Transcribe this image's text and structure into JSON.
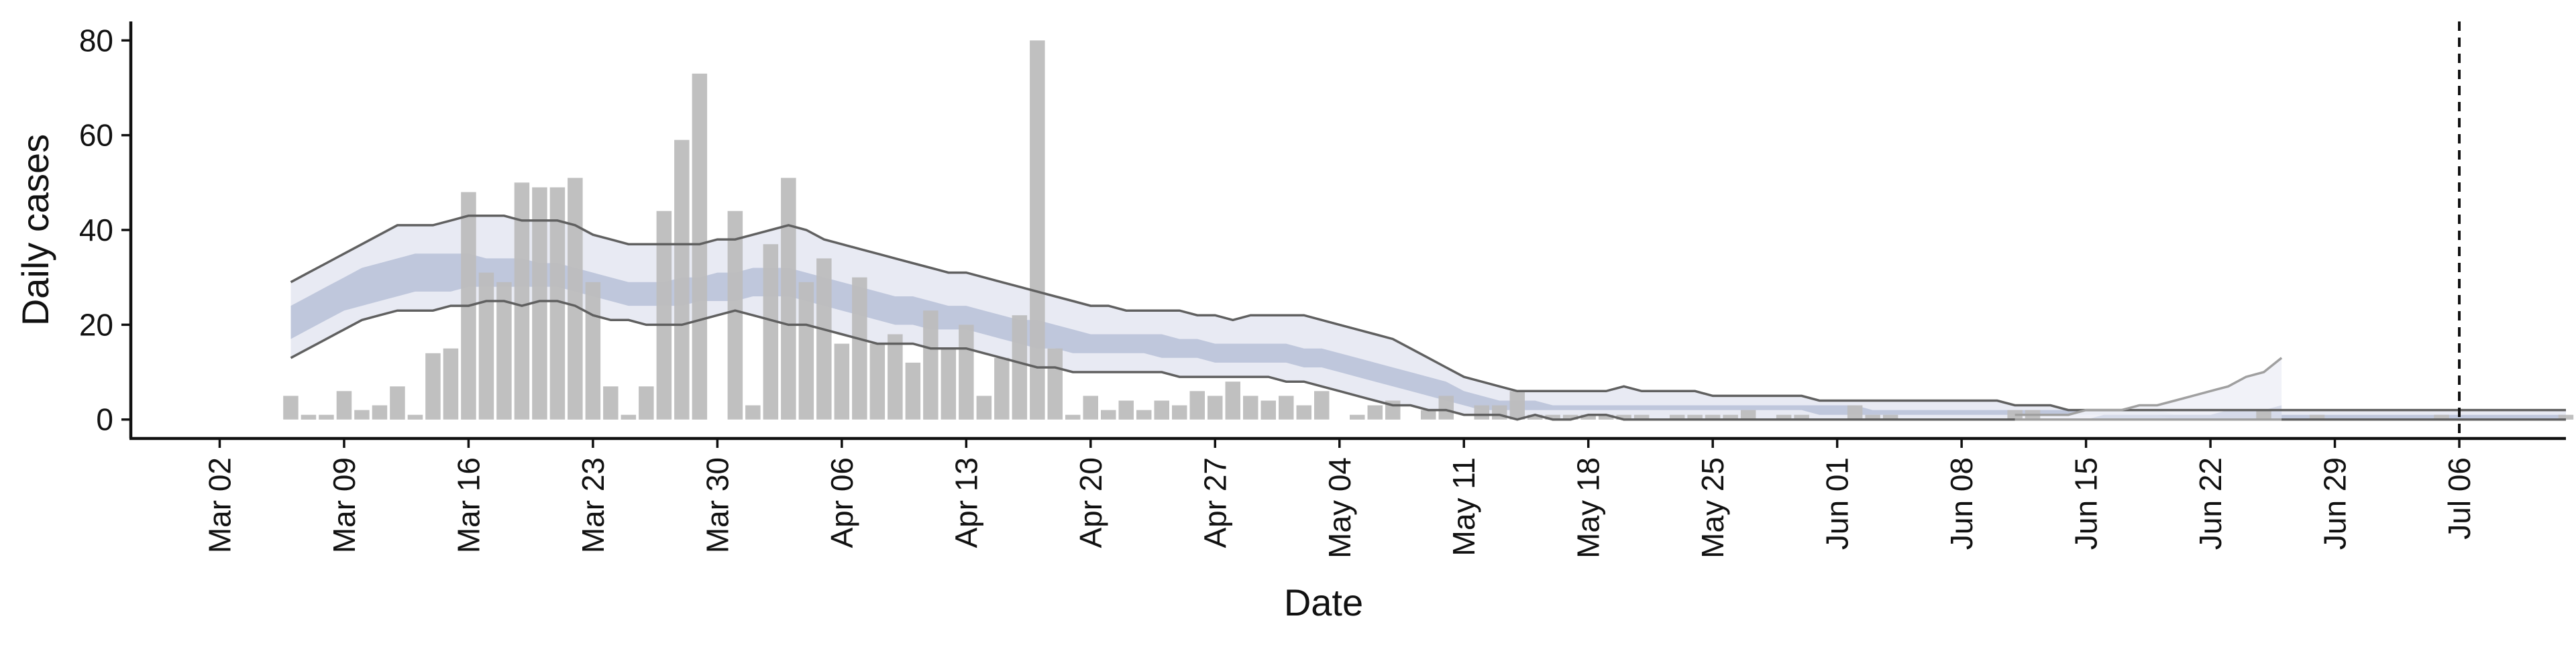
{
  "chart_data": {
    "type": "bar",
    "title": "",
    "xlabel": "Date",
    "ylabel": "Daily cases",
    "ylim": [
      -4,
      84
    ],
    "xlim": [
      "2020-02-26",
      "2020-07-12"
    ],
    "grid": false,
    "legend": "none",
    "x_ticks": [
      "2020-03-02",
      "2020-03-09",
      "2020-03-16",
      "2020-03-23",
      "2020-03-30",
      "2020-04-06",
      "2020-04-13",
      "2020-04-20",
      "2020-04-27",
      "2020-05-04",
      "2020-05-11",
      "2020-05-18",
      "2020-05-25",
      "2020-06-01",
      "2020-06-08",
      "2020-06-15",
      "2020-06-22",
      "2020-06-29",
      "2020-07-06"
    ],
    "x_tick_labels": [
      "Mar 02",
      "Mar 09",
      "Mar 16",
      "Mar 23",
      "Mar 30",
      "Apr 06",
      "Apr 13",
      "Apr 20",
      "Apr 27",
      "May 04",
      "May 11",
      "May 18",
      "May 25",
      "Jun 01",
      "Jun 08",
      "Jun 15",
      "Jun 22",
      "Jun 29",
      "Jul 06"
    ],
    "y_ticks": [
      0,
      20,
      40,
      60,
      80
    ],
    "vline_date": "2020-07-06",
    "colors": {
      "bars": "#bdbdbd",
      "band_outer": "#e6e8f2",
      "band_inner": "#a9b4d0",
      "bound_line": "#606060",
      "forecast_band": "#f0f1f7",
      "forecast_line": "#a0a0a0",
      "axis": "#111111"
    },
    "series": [
      {
        "kind": "bars",
        "start_date": "2020-03-06",
        "values": [
          5,
          1,
          1,
          6,
          2,
          3,
          7,
          1,
          14,
          15,
          48,
          31,
          29,
          50,
          49,
          49,
          51,
          29,
          7,
          1,
          7,
          44,
          59,
          73,
          0,
          44,
          3,
          37,
          51,
          29,
          34,
          16,
          30,
          16,
          18,
          12,
          23,
          15,
          20,
          5,
          13,
          22,
          80,
          15,
          1,
          5,
          2,
          4,
          2,
          4,
          3,
          6,
          5,
          8,
          5,
          4,
          5,
          3,
          6,
          0,
          1,
          3,
          4,
          0,
          2,
          5,
          0,
          3,
          3,
          6,
          1,
          1,
          1,
          1,
          1,
          1,
          1,
          0,
          1,
          1,
          1,
          1,
          2,
          0,
          1,
          1,
          0,
          0,
          3,
          1,
          1,
          0,
          0,
          0,
          0,
          0,
          0,
          2,
          2,
          0,
          0,
          0,
          0,
          0,
          0,
          0,
          0,
          0,
          0,
          0,
          0,
          2,
          0,
          0,
          1,
          0,
          0,
          0,
          0,
          0,
          0,
          1,
          0,
          0,
          0,
          0,
          0,
          0,
          1
        ]
      },
      {
        "kind": "band",
        "start_date": "2020-03-06",
        "upper": [
          29,
          31,
          33,
          35,
          37,
          39,
          41,
          41,
          41,
          42,
          43,
          43,
          43,
          42,
          42,
          42,
          41,
          39,
          38,
          37,
          37,
          37,
          37,
          37,
          38,
          38,
          39,
          40,
          41,
          40,
          38,
          37,
          36,
          35,
          34,
          33,
          32,
          31,
          31,
          30,
          29,
          28,
          27,
          26,
          25,
          24,
          24,
          23,
          23,
          23,
          23,
          22,
          22,
          21,
          22,
          22,
          22,
          22,
          21,
          20,
          19,
          18,
          17,
          15,
          13,
          11,
          9,
          8,
          7,
          6,
          6,
          6,
          6,
          6,
          6,
          7,
          6,
          6,
          6,
          6,
          5,
          5,
          5,
          5,
          5,
          5,
          4,
          4,
          4,
          4,
          4,
          4,
          4,
          4,
          4,
          4,
          4,
          3,
          3,
          3,
          2,
          2,
          2,
          2,
          2,
          2,
          2,
          2,
          2,
          2,
          2,
          2,
          2,
          2,
          2,
          2,
          2,
          2,
          2,
          2,
          2,
          2,
          2,
          2,
          2,
          2,
          2,
          2,
          2
        ],
        "lower": [
          13,
          15,
          17,
          19,
          21,
          22,
          23,
          23,
          23,
          24,
          24,
          25,
          25,
          24,
          25,
          25,
          24,
          22,
          21,
          21,
          20,
          20,
          20,
          21,
          22,
          23,
          22,
          21,
          20,
          20,
          19,
          18,
          17,
          16,
          16,
          16,
          15,
          15,
          15,
          14,
          13,
          12,
          11,
          11,
          10,
          10,
          10,
          10,
          10,
          10,
          9,
          9,
          9,
          9,
          9,
          9,
          8,
          8,
          7,
          6,
          5,
          4,
          3,
          3,
          2,
          2,
          1,
          1,
          1,
          0,
          1,
          0,
          0,
          1,
          1,
          0,
          0,
          0,
          0,
          0,
          0,
          0,
          0,
          0,
          0,
          0,
          0,
          0,
          0,
          0,
          0,
          0,
          0,
          0,
          0,
          0,
          0,
          0,
          0,
          0,
          0,
          0,
          0,
          0,
          0,
          0,
          0,
          0,
          0,
          0,
          0,
          0,
          0,
          0,
          0,
          0,
          0,
          0,
          0,
          0,
          0,
          0,
          0,
          0,
          0,
          0,
          0,
          0,
          0
        ],
        "inner_upper": [
          24,
          26,
          28,
          30,
          32,
          33,
          34,
          35,
          35,
          35,
          35,
          34,
          34,
          34,
          33,
          33,
          32,
          31,
          30,
          29,
          29,
          29,
          30,
          30,
          31,
          31,
          32,
          32,
          32,
          31,
          30,
          29,
          28,
          27,
          26,
          26,
          25,
          24,
          24,
          23,
          22,
          21,
          21,
          20,
          19,
          18,
          18,
          18,
          18,
          18,
          17,
          17,
          16,
          16,
          16,
          16,
          16,
          15,
          15,
          14,
          13,
          12,
          11,
          10,
          9,
          8,
          6,
          5,
          4,
          4,
          4,
          3,
          3,
          3,
          3,
          3,
          3,
          3,
          3,
          3,
          3,
          3,
          3,
          3,
          3,
          3,
          3,
          3,
          3,
          2,
          2,
          2,
          2,
          2,
          2,
          2,
          2,
          2,
          2,
          2,
          2,
          2,
          2,
          2,
          2,
          2,
          1,
          1,
          1,
          1,
          1,
          1,
          1,
          1,
          1,
          1,
          1,
          1,
          1,
          1,
          1,
          1,
          1,
          1,
          1,
          1,
          1,
          1,
          1
        ],
        "inner_lower": [
          17,
          19,
          21,
          23,
          24,
          25,
          26,
          27,
          27,
          27,
          28,
          28,
          28,
          28,
          28,
          28,
          27,
          26,
          25,
          24,
          24,
          24,
          24,
          25,
          25,
          25,
          26,
          26,
          26,
          25,
          24,
          23,
          22,
          21,
          20,
          20,
          19,
          19,
          19,
          18,
          17,
          16,
          15,
          15,
          14,
          14,
          14,
          14,
          14,
          13,
          13,
          13,
          12,
          12,
          12,
          12,
          12,
          11,
          11,
          10,
          9,
          8,
          7,
          6,
          5,
          4,
          3,
          2,
          2,
          2,
          2,
          2,
          2,
          2,
          2,
          2,
          2,
          2,
          2,
          2,
          2,
          2,
          2,
          2,
          2,
          2,
          1,
          1,
          1,
          1,
          1,
          1,
          1,
          1,
          1,
          1,
          1,
          1,
          1,
          1,
          1,
          1,
          1,
          1,
          1,
          1,
          0,
          0,
          0,
          0,
          0,
          0,
          0,
          0,
          0,
          0,
          0,
          0,
          0,
          0,
          0,
          0,
          0,
          0,
          0,
          0,
          0,
          0,
          0
        ]
      },
      {
        "kind": "forecast_band",
        "start_date": "2020-06-11",
        "upper": [
          1,
          1,
          1,
          1,
          2,
          2,
          2,
          3,
          3,
          4,
          5,
          6,
          7,
          9,
          10,
          13
        ],
        "lower": [
          0,
          0,
          0,
          0,
          0,
          0,
          0,
          0,
          0,
          0,
          0,
          0,
          0,
          0,
          0,
          0
        ],
        "inner_upper": [
          0,
          0,
          0,
          0,
          0,
          1,
          1,
          1,
          1,
          1,
          1,
          1,
          2,
          2,
          2,
          3
        ],
        "inner_lower": [
          0,
          0,
          0,
          0,
          0,
          0,
          0,
          0,
          0,
          0,
          0,
          0,
          0,
          0,
          0,
          0
        ]
      }
    ]
  }
}
